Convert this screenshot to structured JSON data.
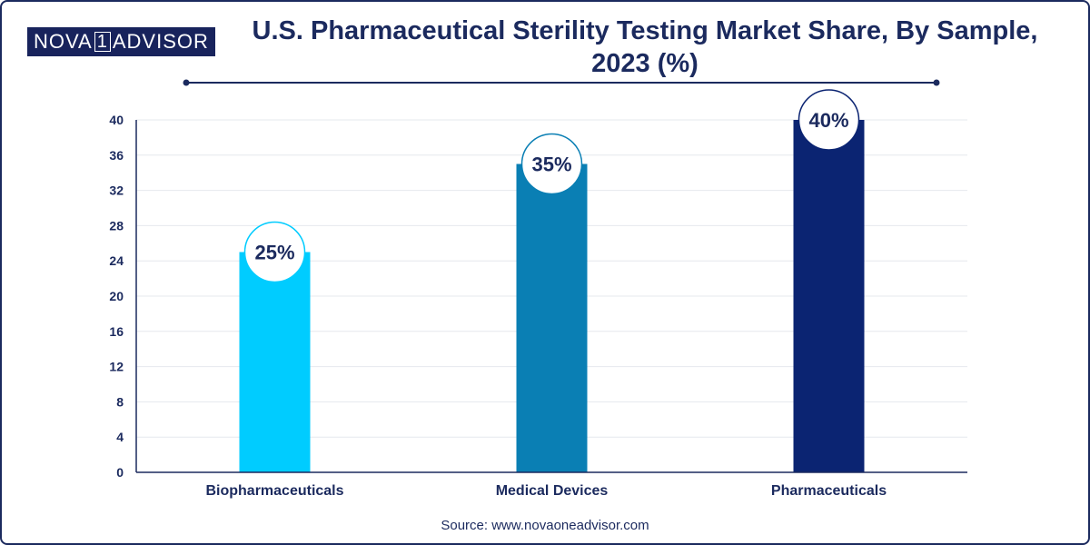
{
  "brand": {
    "part1": "NOVA",
    "part2": "1",
    "part3": "ADVISOR"
  },
  "source": "Source: www.novaoneadvisor.com",
  "colors": {
    "title": "#1b2a5e",
    "axis": "#1b2a5e",
    "grid": "#e6e8ee"
  },
  "chart_data": {
    "type": "bar",
    "title": "U.S. Pharmaceutical Sterility Testing Market Share, By Sample, 2023 (%)",
    "title_lines": [
      "U.S. Pharmaceutical Sterility Testing Market Share, By Sample,",
      "2023 (%)"
    ],
    "categories": [
      "Biopharmaceuticals",
      "Medical Devices",
      "Pharmaceuticals"
    ],
    "values": [
      25,
      35,
      40
    ],
    "data_labels": [
      "25%",
      "35%",
      "40%"
    ],
    "bar_colors": [
      "#00ccff",
      "#0a7fb4",
      "#0b2472"
    ],
    "xlabel": "",
    "ylabel": "",
    "ylim": [
      0,
      40
    ],
    "yticks": [
      0,
      4,
      8,
      12,
      16,
      20,
      24,
      28,
      32,
      36,
      40
    ],
    "grid": true,
    "legend": "none"
  }
}
